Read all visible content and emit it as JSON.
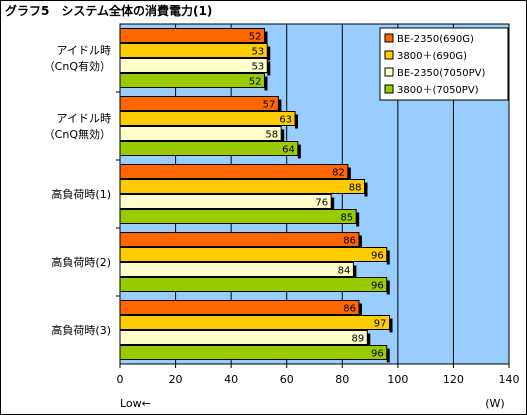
{
  "chart_data": {
    "type": "bar",
    "orientation": "horizontal",
    "title": "グラフ5　システム全体の消費電力(1)",
    "categories": [
      "アイドル時\n（CnQ有効）",
      "アイドル時\n（CnQ無効）",
      "高負荷時(1)",
      "高負荷時(2)",
      "高負荷時(3)"
    ],
    "series": [
      {
        "name": "BE-2350(690G)",
        "color": "#ff6600",
        "values": [
          52,
          57,
          82,
          86,
          86
        ]
      },
      {
        "name": "3800＋(690G)",
        "color": "#ffcc00",
        "values": [
          53,
          63,
          88,
          96,
          97
        ]
      },
      {
        "name": "BE-2350(7050PV)",
        "color": "#ffffcc",
        "values": [
          53,
          58,
          76,
          84,
          89
        ]
      },
      {
        "name": "3800＋(7050PV)",
        "color": "#99cc00",
        "values": [
          52,
          64,
          85,
          96,
          96
        ]
      }
    ],
    "xlim": [
      0,
      140
    ],
    "xticks": [
      0,
      20,
      40,
      60,
      80,
      100,
      120,
      140
    ],
    "xunit": "(W)",
    "xnote": "Low←",
    "plot_background": "#99ccff",
    "grid": true,
    "legend_position": "top-right"
  }
}
